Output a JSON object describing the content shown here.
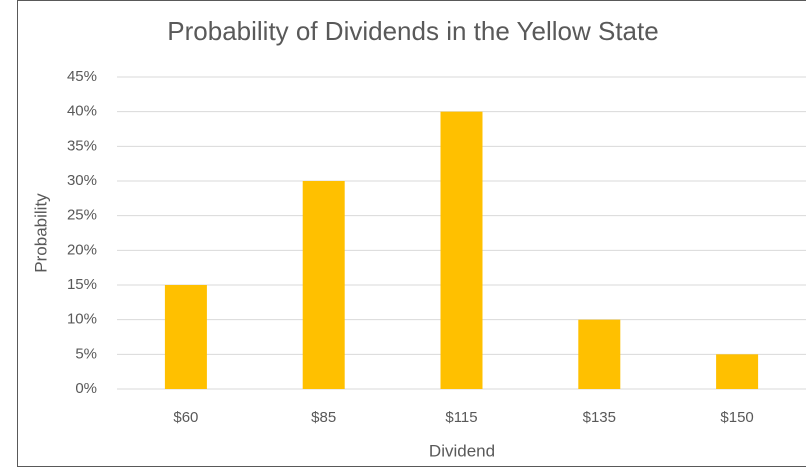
{
  "chart_data": {
    "type": "bar",
    "title": "Probability of Dividends in the Yellow State",
    "x_label": "Dividend",
    "y_label": "Probability",
    "categories": [
      "$60",
      "$85",
      "$115",
      "$135",
      "$150"
    ],
    "values": [
      15,
      30,
      40,
      10,
      5
    ],
    "color": "#ffc000",
    "ylim": [
      0,
      45
    ],
    "yticks": [
      {
        "value": 0,
        "label": "0%"
      },
      {
        "value": 5,
        "label": "5%"
      },
      {
        "value": 10,
        "label": "10%"
      },
      {
        "value": 15,
        "label": "15%"
      },
      {
        "value": 20,
        "label": "20%"
      },
      {
        "value": 25,
        "label": "25%"
      },
      {
        "value": 30,
        "label": "30%"
      },
      {
        "value": 35,
        "label": "35%"
      },
      {
        "value": 40,
        "label": "40%"
      },
      {
        "value": 45,
        "label": "45%"
      }
    ],
    "grid": true
  }
}
